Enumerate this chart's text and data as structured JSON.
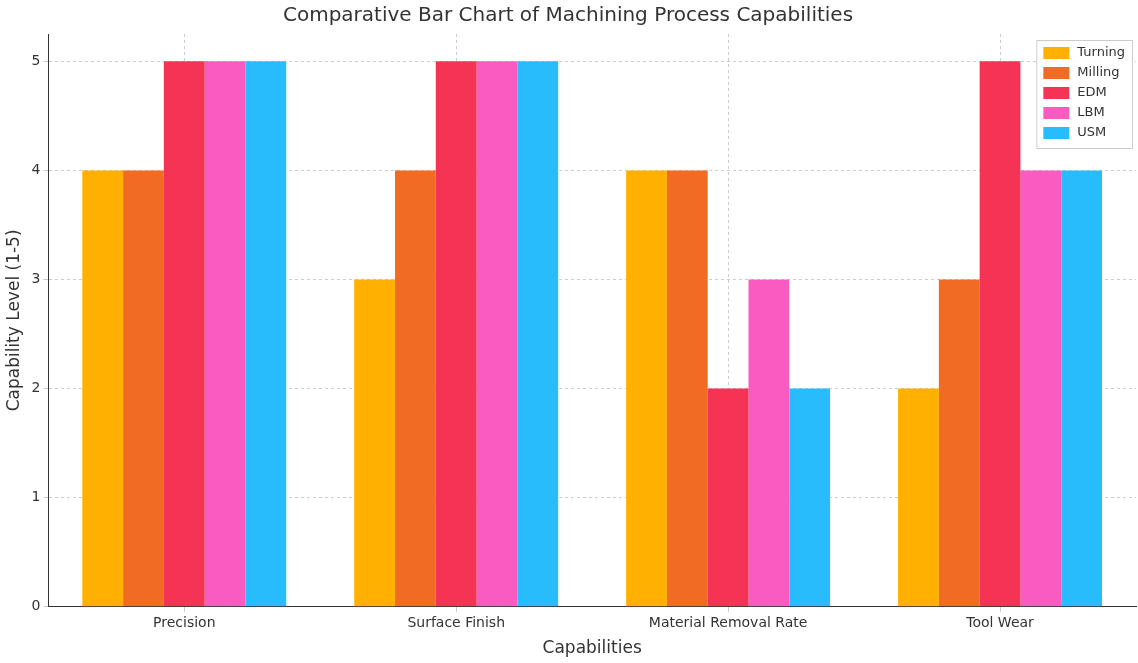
{
  "chart_data": {
    "type": "bar",
    "title": "Comparative Bar Chart of Machining Process Capabilities",
    "xlabel": "Capabilities",
    "ylabel": "Capability Level (1-5)",
    "categories": [
      "Precision",
      "Surface Finish",
      "Material Removal Rate",
      "Tool Wear"
    ],
    "series": [
      {
        "name": "Turning",
        "color": "#ffb000",
        "values": [
          4,
          3,
          4,
          2
        ]
      },
      {
        "name": "Milling",
        "color": "#f26b22",
        "values": [
          4,
          4,
          4,
          3
        ]
      },
      {
        "name": "EDM",
        "color": "#f53354",
        "values": [
          5,
          5,
          2,
          5
        ]
      },
      {
        "name": "LBM",
        "color": "#f95bc1",
        "values": [
          5,
          5,
          3,
          4
        ]
      },
      {
        "name": "USM",
        "color": "#29bcfc",
        "values": [
          5,
          5,
          2,
          4
        ]
      }
    ],
    "ylim": [
      0,
      5.25
    ],
    "yticks": [
      0,
      1,
      2,
      3,
      4,
      5
    ],
    "grid": true,
    "legend": "top right"
  }
}
